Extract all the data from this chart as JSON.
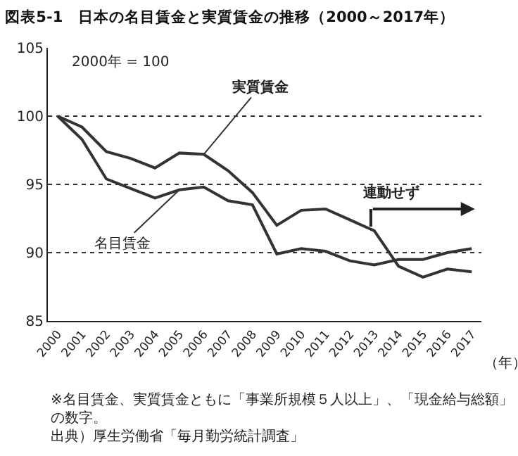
{
  "chart_data": {
    "type": "line",
    "title": "図表5-1　日本の名目賃金と実質賃金の推移（2000～2017年）",
    "xlabel": "（年）",
    "categories": [
      "2000",
      "2001",
      "2002",
      "2003",
      "2004",
      "2005",
      "2006",
      "2007",
      "2008",
      "2009",
      "2010",
      "2011",
      "2012",
      "2013",
      "2014",
      "2015",
      "2016",
      "2017"
    ],
    "series": [
      {
        "name": "実質賃金",
        "color": "#333333",
        "values": [
          100,
          99.2,
          97.4,
          96.9,
          96.2,
          97.3,
          97.2,
          96.0,
          94.4,
          92.0,
          93.1,
          93.2,
          92.4,
          91.6,
          89.0,
          88.2,
          88.8,
          88.6
        ]
      },
      {
        "name": "名目賃金",
        "color": "#333333",
        "values": [
          100,
          98.3,
          95.4,
          94.7,
          94.0,
          94.6,
          94.8,
          93.8,
          93.5,
          89.9,
          90.3,
          90.1,
          89.4,
          89.1,
          89.5,
          89.5,
          90.0,
          90.3
        ]
      }
    ],
    "ylim": [
      85,
      105
    ],
    "yticks": [
      85,
      90,
      95,
      100,
      105
    ],
    "grid": "y",
    "legend": false,
    "marker": "none",
    "line_style": "solid",
    "annotations": [
      "2000年 = 100",
      "連動せず",
      "※名目賃金、実質賃金ともに「事業所規模５人以上」、「現金給与総額」の数字。",
      "出典）厚生労働省「毎月勤労統計調査」"
    ]
  }
}
